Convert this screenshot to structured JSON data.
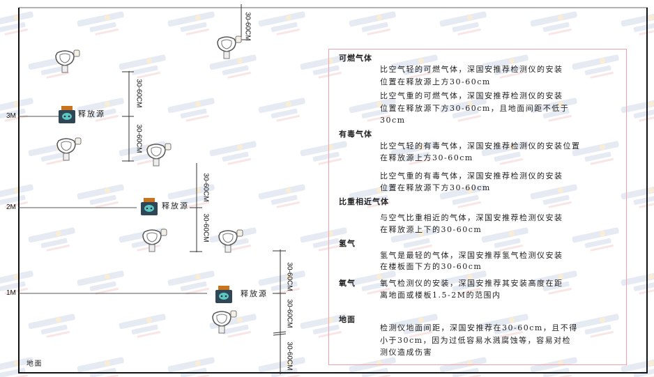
{
  "watermark": {
    "brand": "SINGOAN",
    "cn": "深国安",
    "color": "#c9d2e4"
  },
  "levels": [
    {
      "label": "3M"
    },
    {
      "label": "2M"
    },
    {
      "label": "1M"
    }
  ],
  "ground_label": "地面",
  "source_label": "释放源",
  "dimension_label": "30-60CM",
  "colors": {
    "box_border": "#f2a0a6",
    "source_body": "#2f4656",
    "source_lid": "#c9741f",
    "source_face": "#5ec7c2"
  },
  "guide": {
    "sections": [
      {
        "heading": "可燃气体",
        "paragraphs": [
          [
            "比空气轻的可燃气体，深国安推荐检测仪的安装",
            "位置在释放源上方30-60cm"
          ],
          [
            "比空气重的可燃气体，深国安推荐检测仪的安装",
            "位置在释放源下方30-60cm，且地面间距不低于",
            "30cm"
          ]
        ]
      },
      {
        "heading": "有毒气体",
        "paragraphs": [
          [
            "比空气轻的有毒气体，深国安推荐检测仪的安装位置",
            "在释放源上方30-60cm"
          ],
          [
            "比空气重的有毒气体，深国安推荐检测仪的安装",
            "位置在释放源下方30-60cm"
          ]
        ]
      },
      {
        "heading": "比重相近气体",
        "paragraphs": [
          [
            "与空气比重相近的气体，深国安推荐检测仪安装",
            "在释放源上下的30-60cm"
          ]
        ]
      },
      {
        "heading": "氢气",
        "paragraphs": [
          [
            "氢气是最轻的气体，深国安推荐氢气检测仪安装",
            "在楼板面下方的30-60cm"
          ]
        ]
      },
      {
        "heading": "氧气",
        "paragraphs": [
          [
            "氧气检测仪的安装，深国安推荐其安装高度在距",
            "离地面或楼板1.5-2M的范围内"
          ]
        ]
      },
      {
        "heading": "地面",
        "paragraphs": [
          [
            "检测仪地面间距，深国安推荐在30-60cm，且不得",
            "小于30cm，因为过低容易水溅腐蚀等，容易对检",
            "测仪造成伤害"
          ]
        ]
      }
    ]
  }
}
